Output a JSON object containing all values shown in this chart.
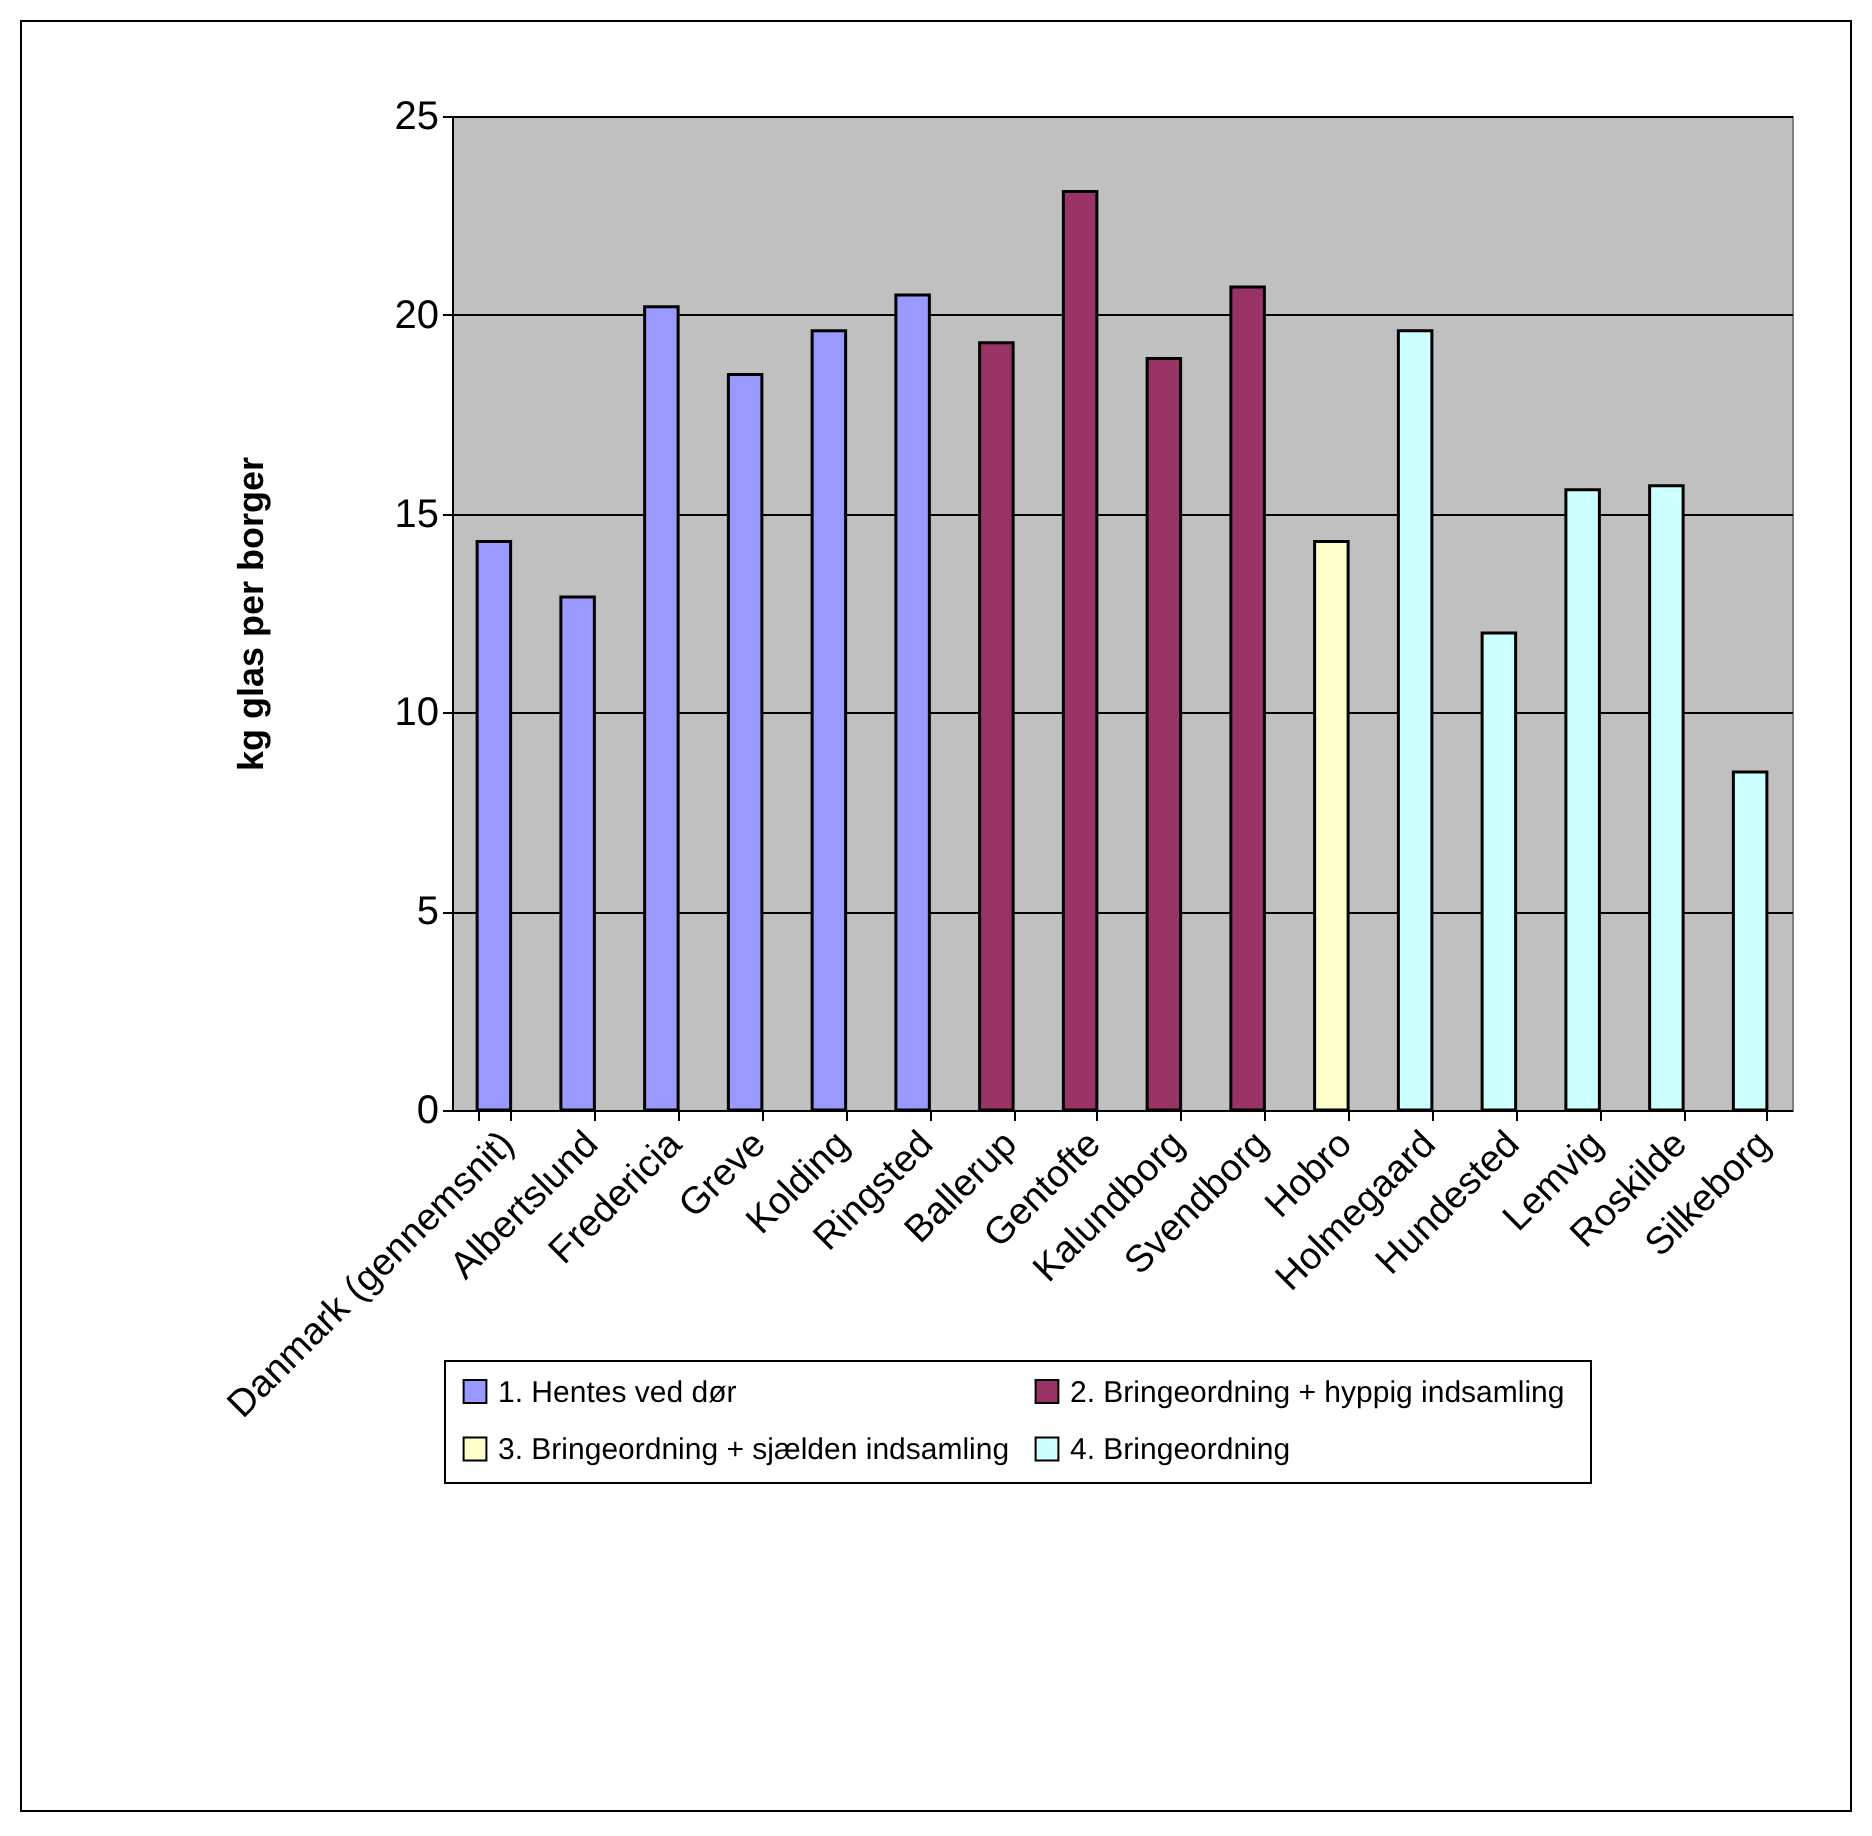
{
  "chart_data": {
    "type": "bar",
    "ylabel": "kg glas per borger",
    "categories": [
      "Danmark (gennemsnit)",
      "Albertslund",
      "Fredericia",
      "Greve",
      "Kolding",
      "Ringsted",
      "Ballerup",
      "Gentofte",
      "Kalundborg",
      "Svendborg",
      "Hobro",
      "Holmegaard",
      "Hundested",
      "Lemvig",
      "Roskilde",
      "Silkeborg"
    ],
    "series": [
      {
        "name": "1. Hentes ved dør",
        "color": "#9999ff",
        "values": [
          14.3,
          12.9,
          20.2,
          18.5,
          19.6,
          20.5,
          null,
          null,
          null,
          null,
          null,
          null,
          null,
          null,
          null,
          null
        ]
      },
      {
        "name": "2.  Bringeordning + hyppig indsamling",
        "color": "#993366",
        "values": [
          null,
          null,
          null,
          null,
          null,
          null,
          19.3,
          23.1,
          18.9,
          20.7,
          null,
          null,
          null,
          null,
          null,
          null
        ]
      },
      {
        "name": "3.  Bringeordning + sjælden indsamling",
        "color": "#ffffcc",
        "values": [
          null,
          null,
          null,
          null,
          null,
          null,
          null,
          null,
          null,
          null,
          14.3,
          null,
          null,
          null,
          null,
          null
        ]
      },
      {
        "name": "4.  Bringeordning",
        "color": "#ccffff",
        "values": [
          null,
          null,
          null,
          null,
          null,
          null,
          null,
          null,
          null,
          null,
          null,
          19.6,
          12.0,
          15.6,
          15.7,
          8.5
        ]
      }
    ],
    "ylim": [
      0,
      25
    ],
    "yticks": [
      0,
      5,
      10,
      15,
      20,
      25
    ],
    "grid": "y",
    "legend": "bottom"
  }
}
